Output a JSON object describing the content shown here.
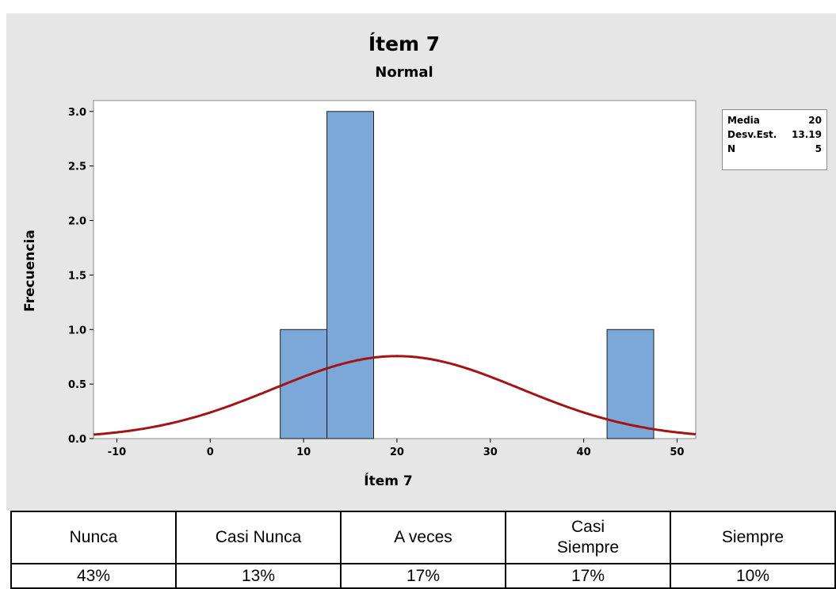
{
  "chart_data": {
    "type": "histogram",
    "title": "Ítem 7",
    "subtitle": "Normal",
    "xlabel": "Ítem 7",
    "ylabel": "Frecuencia",
    "xlim": [
      -12.5,
      52
    ],
    "ylim": [
      0,
      3.1
    ],
    "x_ticks": [
      -10,
      0,
      10,
      20,
      30,
      40,
      50
    ],
    "y_ticks": [
      "0.0",
      "0.5",
      "1.0",
      "1.5",
      "2.0",
      "2.5",
      "3.0"
    ],
    "bins": [
      {
        "x0": 7.5,
        "x1": 12.5,
        "count": 1
      },
      {
        "x0": 12.5,
        "x1": 17.5,
        "count": 3
      },
      {
        "x0": 42.5,
        "x1": 47.5,
        "count": 1
      }
    ],
    "normal_fit": {
      "mean": 20,
      "stdev": 13.19,
      "n": 5,
      "bin_width": 5
    },
    "colors": {
      "bar": "#7ba7d9",
      "bar_edge": "#1f1f1f",
      "curve": "#a31515"
    },
    "grid": false
  },
  "stats": [
    {
      "label": "Media",
      "value": "20"
    },
    {
      "label": "Desv.Est.",
      "value": "13.19"
    },
    {
      "label": "N",
      "value": "5"
    }
  ],
  "table": {
    "headers": [
      "Nunca",
      "Casi Nunca",
      "A veces",
      "Casi\nSiempre",
      "Siempre"
    ],
    "values": [
      "43%",
      "13%",
      "17%",
      "17%",
      "10%"
    ]
  }
}
